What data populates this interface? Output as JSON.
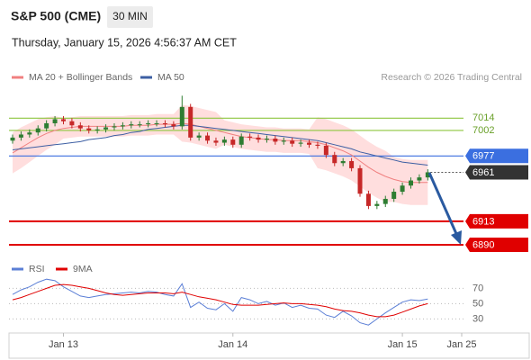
{
  "chart_data": {
    "type": "candlestick",
    "title": "S&P 500 (CME)",
    "interval": "30 MIN",
    "timestamp": "Thursday, January 15, 2026 4:56:37 AM CET",
    "source": "Research © 2026 Trading Central",
    "categories": [
      null,
      null,
      null,
      null,
      null,
      null,
      "Jan 13",
      null,
      null,
      null,
      null,
      null,
      null,
      null,
      null,
      null,
      null,
      null,
      null,
      null,
      null,
      null,
      null,
      null,
      null,
      null,
      "Jan 14",
      null,
      null,
      null,
      null,
      null,
      null,
      null,
      null,
      null,
      null,
      null,
      null,
      null,
      null,
      null,
      null,
      null,
      null,
      null,
      "Jan 15",
      null,
      null,
      null,
      null,
      null,
      null,
      "Jan 25"
    ],
    "open": [
      6992,
      6995,
      6998,
      7000,
      7004,
      7009,
      7013,
      7011,
      7007,
      7004,
      7002,
      7003,
      7005,
      7006,
      7007,
      7008,
      7008,
      7009,
      7009,
      7008,
      7006,
      7025,
      6995,
      6997,
      6992,
      6990,
      6993,
      6988,
      6996,
      6995,
      6993,
      6994,
      6991,
      6992,
      6989,
      6990,
      6988,
      6987,
      6978,
      6970,
      6972,
      6965,
      6940,
      6928,
      6930,
      6935,
      6942,
      6948,
      6953,
      6956,
      null,
      null,
      null,
      null
    ],
    "high": [
      6998,
      7001,
      7003,
      7007,
      7012,
      7016,
      7016,
      7014,
      7010,
      7007,
      7006,
      7008,
      7009,
      7010,
      7011,
      7011,
      7012,
      7012,
      7012,
      7011,
      7036,
      7028,
      7000,
      7000,
      6995,
      6996,
      6996,
      6999,
      6999,
      6998,
      6997,
      6997,
      6995,
      6995,
      6993,
      6993,
      6991,
      6990,
      6981,
      6975,
      6975,
      6968,
      6943,
      6933,
      6938,
      6945,
      6951,
      6956,
      6959,
      6964,
      null,
      null,
      null,
      null
    ],
    "low": [
      6989,
      6992,
      6995,
      6997,
      7001,
      7006,
      7008,
      7004,
      7001,
      6999,
      6999,
      7000,
      7002,
      7003,
      7004,
      7005,
      7005,
      7006,
      7005,
      7003,
      7003,
      6992,
      6992,
      6989,
      6987,
      6987,
      6985,
      6985,
      6992,
      6990,
      6990,
      6988,
      6988,
      6986,
      6986,
      6985,
      6984,
      6975,
      6967,
      6967,
      6962,
      6937,
      6925,
      6925,
      6927,
      6932,
      6939,
      6945,
      6950,
      6953,
      null,
      null,
      null,
      null
    ],
    "close": [
      6995,
      6998,
      7000,
      7004,
      7009,
      7013,
      7011,
      7007,
      7004,
      7002,
      7003,
      7005,
      7006,
      7007,
      7008,
      7008,
      7009,
      7009,
      7008,
      7006,
      7025,
      6995,
      6997,
      6992,
      6990,
      6993,
      6988,
      6996,
      6995,
      6993,
      6994,
      6991,
      6992,
      6989,
      6990,
      6988,
      6987,
      6978,
      6970,
      6972,
      6965,
      6940,
      6928,
      6930,
      6935,
      6942,
      6948,
      6953,
      6956,
      6961,
      null,
      null,
      null,
      null
    ],
    "up_color": "#2e7d32",
    "down_color": "#c62828",
    "series": [
      {
        "name": "MA 20 + Bollinger Bands",
        "color": "#f08080",
        "band_color": "#ffdede",
        "values": [
          6980,
          6985,
          6990,
          6995,
          6999,
          7002,
          7004,
          7005,
          7006,
          7006,
          7006,
          7006,
          7006,
          7006,
          7007,
          7007,
          7007,
          7008,
          7008,
          7008,
          7009,
          7008,
          7006,
          7004,
          7002,
          7000,
          6998,
          6996,
          6995,
          6994,
          6993,
          6993,
          6992,
          6992,
          6992,
          6991,
          6990,
          6988,
          6985,
          6982,
          6978,
          6972,
          6966,
          6961,
          6957,
          6954,
          6952,
          6951,
          6951,
          6951,
          null,
          null,
          null,
          null
        ],
        "upper": [
          7000,
          7005,
          7009,
          7013,
          7015,
          7016,
          7014,
          7015,
          7016,
          7016,
          7016,
          7016,
          7016,
          7016,
          7017,
          7017,
          7017,
          7018,
          7018,
          7018,
          7027,
          7026,
          7024,
          7022,
          7020,
          7012,
          7010,
          7008,
          7007,
          7006,
          7005,
          7005,
          7004,
          7004,
          7004,
          7003,
          7015,
          7013,
          7010,
          7007,
          7003,
          6997,
          6991,
          6986,
          6982,
          6976,
          6974,
          6973,
          6973,
          6973,
          null,
          null,
          null,
          null
        ],
        "lower": [
          6960,
          6965,
          6971,
          6977,
          6983,
          6988,
          6994,
          6995,
          6996,
          6996,
          6996,
          6996,
          6996,
          6996,
          6997,
          6997,
          6997,
          6998,
          6998,
          6998,
          6991,
          6990,
          6988,
          6986,
          6984,
          6988,
          6986,
          6984,
          6983,
          6982,
          6981,
          6981,
          6980,
          6980,
          6980,
          6979,
          6965,
          6963,
          6960,
          6957,
          6953,
          6947,
          6941,
          6936,
          6932,
          6932,
          6930,
          6929,
          6929,
          6929,
          null,
          null,
          null,
          null
        ]
      },
      {
        "name": "MA 50",
        "color": "#3d5fa3",
        "values": [
          6983,
          6984,
          6985,
          6986,
          6987,
          6988,
          6989,
          6990,
          6991,
          6993,
          6994,
          6995,
          6997,
          6998,
          7000,
          7001,
          7003,
          7004,
          7005,
          7006,
          7007,
          7007,
          7006,
          7005,
          7004,
          7003,
          7002,
          7001,
          7000,
          6999,
          6998,
          6997,
          6996,
          6995,
          6994,
          6993,
          6992,
          6990,
          6988,
          6986,
          6984,
          6981,
          6979,
          6977,
          6975,
          6973,
          6971,
          6970,
          6969,
          6968,
          null,
          null,
          null,
          null
        ]
      }
    ],
    "ylim": [
      6879,
      7046
    ],
    "levels": [
      {
        "value": 7014,
        "color": "#8dc63f",
        "tag": false
      },
      {
        "value": 7002,
        "color": "#8dc63f",
        "tag": false
      },
      {
        "value": 6977,
        "color": "#3b6fe0",
        "tag": true
      },
      {
        "value": 6913,
        "color": "#e00000",
        "tag": true
      },
      {
        "value": 6890,
        "color": "#e00000",
        "tag": true
      }
    ],
    "last_price": {
      "value": 6961,
      "color": "#333333"
    },
    "rsi": {
      "ylim": [
        14,
        94
      ],
      "yticks": [
        70,
        50,
        30
      ],
      "series": [
        {
          "name": "RSI",
          "color": "#5b7fd6",
          "values": [
            62,
            68,
            72,
            78,
            82,
            80,
            72,
            66,
            60,
            58,
            60,
            62,
            63,
            64,
            65,
            64,
            66,
            65,
            62,
            60,
            76,
            45,
            52,
            44,
            42,
            50,
            40,
            58,
            55,
            50,
            53,
            48,
            51,
            45,
            48,
            44,
            43,
            35,
            32,
            40,
            34,
            25,
            22,
            30,
            38,
            45,
            52,
            55,
            54,
            56,
            null,
            null,
            null,
            null
          ]
        },
        {
          "name": "9MA",
          "color": "#e00000",
          "values": [
            55,
            58,
            62,
            66,
            70,
            74,
            75,
            74,
            72,
            70,
            67,
            64,
            62,
            61,
            62,
            63,
            64,
            64,
            64,
            63,
            65,
            62,
            59,
            57,
            55,
            52,
            49,
            48,
            48,
            48,
            49,
            50,
            51,
            50,
            50,
            49,
            48,
            46,
            43,
            41,
            40,
            38,
            35,
            33,
            33,
            35,
            39,
            43,
            47,
            50,
            null,
            null,
            null,
            null
          ]
        }
      ]
    }
  }
}
